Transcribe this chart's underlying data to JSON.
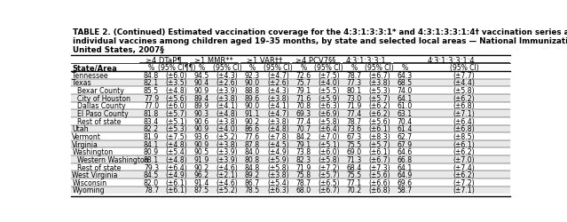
{
  "title_line1": "TABLE 2. (Continued) Estimated vaccination coverage for the 4:3:1:3:3:1* and 4:3:1:3:3:1:4† vaccination series and selected",
  "title_line2": "individual vaccines among children aged 19–35 months, by state and selected local areas — National Immunization Survey,",
  "title_line3": "United States, 2007§",
  "col_groups": [
    "≥4 DTaP¶",
    "≥1 MMR**",
    "≥1 VAR††",
    "≥4 PCV7§§",
    "4:3:1:3:3:1",
    "4:3:1:3:3:1:4"
  ],
  "subhdr_labels": [
    "%",
    "(95% CI¶¶)",
    "%",
    "(95% CI)",
    "%",
    "(95% CI)",
    "%",
    "(95% CI)",
    "%",
    "(95% CI)",
    "%",
    "(95% CI)"
  ],
  "rows": [
    [
      "Tennessee",
      "84.8",
      "(±6.0)",
      "94.5",
      "(±4.3)",
      "92.3",
      "(±4.7)",
      "72.6",
      "(±7.5)",
      "78.7",
      "(±6.7)",
      "64.3",
      "(±7.7)"
    ],
    [
      "Texas",
      "82.1",
      "(±3.5)",
      "90.4",
      "(±2.6)",
      "90.0",
      "(±2.6)",
      "75.7",
      "(±4.0)",
      "77.3",
      "(±3.8)",
      "68.5",
      "(±4.4)"
    ],
    [
      "Bexar County",
      "85.5",
      "(±4.8)",
      "90.9",
      "(±3.9)",
      "88.8",
      "(±4.3)",
      "79.1",
      "(±5.5)",
      "80.1",
      "(±5.3)",
      "74.0",
      "(±5.8)"
    ],
    [
      "City of Houston",
      "77.9",
      "(±5.6)",
      "89.4",
      "(±3.8)",
      "89.6",
      "(±3.8)",
      "71.6",
      "(±5.9)",
      "73.0",
      "(±5.7)",
      "64.1",
      "(±6.2)"
    ],
    [
      "Dallas County",
      "77.0",
      "(±6.0)",
      "89.9",
      "(±4.1)",
      "90.0",
      "(±4.1)",
      "70.8",
      "(±6.3)",
      "71.9",
      "(±6.2)",
      "61.0",
      "(±6.8)"
    ],
    [
      "El Paso County",
      "81.8",
      "(±5.7)",
      "90.3",
      "(±4.8)",
      "91.1",
      "(±4.7)",
      "69.3",
      "(±6.9)",
      "77.4",
      "(±6.2)",
      "63.1",
      "(±7.1)"
    ],
    [
      "Rest of state",
      "83.4",
      "(±5.1)",
      "90.6",
      "(±3.8)",
      "90.2",
      "(±3.8)",
      "77.4",
      "(±5.8)",
      "78.7",
      "(±5.6)",
      "70.4",
      "(±6.4)"
    ],
    [
      "Utah",
      "82.2",
      "(±5.3)",
      "90.9",
      "(±4.0)",
      "86.6",
      "(±4.8)",
      "70.7",
      "(±6.4)",
      "73.6",
      "(±6.1)",
      "61.4",
      "(±6.8)"
    ],
    [
      "Vermont",
      "81.9",
      "(±7.5)",
      "93.6",
      "(±5.2)",
      "77.6",
      "(±7.8)",
      "84.2",
      "(±7.0)",
      "67.3",
      "(±8.3)",
      "62.7",
      "(±8.5)"
    ],
    [
      "Virginia",
      "84.1",
      "(±4.8)",
      "90.9",
      "(±3.8)",
      "87.8",
      "(±4.5)",
      "79.1",
      "(±5.1)",
      "75.5",
      "(±5.7)",
      "67.9",
      "(±6.1)"
    ],
    [
      "Washington",
      "80.9",
      "(±5.4)",
      "90.5",
      "(±3.9)",
      "84.0",
      "(±4.9)",
      "73.8",
      "(±6.0)",
      "69.0",
      "(±6.1)",
      "64.6",
      "(±6.2)"
    ],
    [
      "Western Washington",
      "88.1",
      "(±4.8)",
      "91.9",
      "(±3.9)",
      "80.8",
      "(±5.9)",
      "82.3",
      "(±5.8)",
      "71.3",
      "(±6.7)",
      "66.8",
      "(±7.0)"
    ],
    [
      "Rest of state",
      "79.3",
      "(±6.4)",
      "90.2",
      "(±4.6)",
      "84.8",
      "(±5.8)",
      "71.9",
      "(±7.2)",
      "68.4",
      "(±7.3)",
      "64.1",
      "(±7.4)"
    ],
    [
      "West Virginia",
      "84.5",
      "(±4.9)",
      "96.2",
      "(±2.1)",
      "89.2",
      "(±3.8)",
      "75.8",
      "(±5.7)",
      "75.5",
      "(±5.6)",
      "64.9",
      "(±6.2)"
    ],
    [
      "Wisconsin",
      "82.0",
      "(±6.1)",
      "91.4",
      "(±4.6)",
      "86.7",
      "(±5.4)",
      "78.7",
      "(±6.5)",
      "77.1",
      "(±6.6)",
      "69.6",
      "(±7.2)"
    ],
    [
      "Wyoming",
      "78.7",
      "(±6.1)",
      "87.5",
      "(±5.2)",
      "78.5",
      "(±6.3)",
      "68.0",
      "(±6.7)",
      "70.2",
      "(±6.8)",
      "58.7",
      "(±7.1)"
    ]
  ],
  "indented_rows": [
    2,
    3,
    4,
    5,
    6,
    11,
    12
  ],
  "bg_color": "#ffffff",
  "text_color": "#000000",
  "table_font_size": 5.6,
  "title_font_size": 6.3,
  "header_font_size": 6.0
}
